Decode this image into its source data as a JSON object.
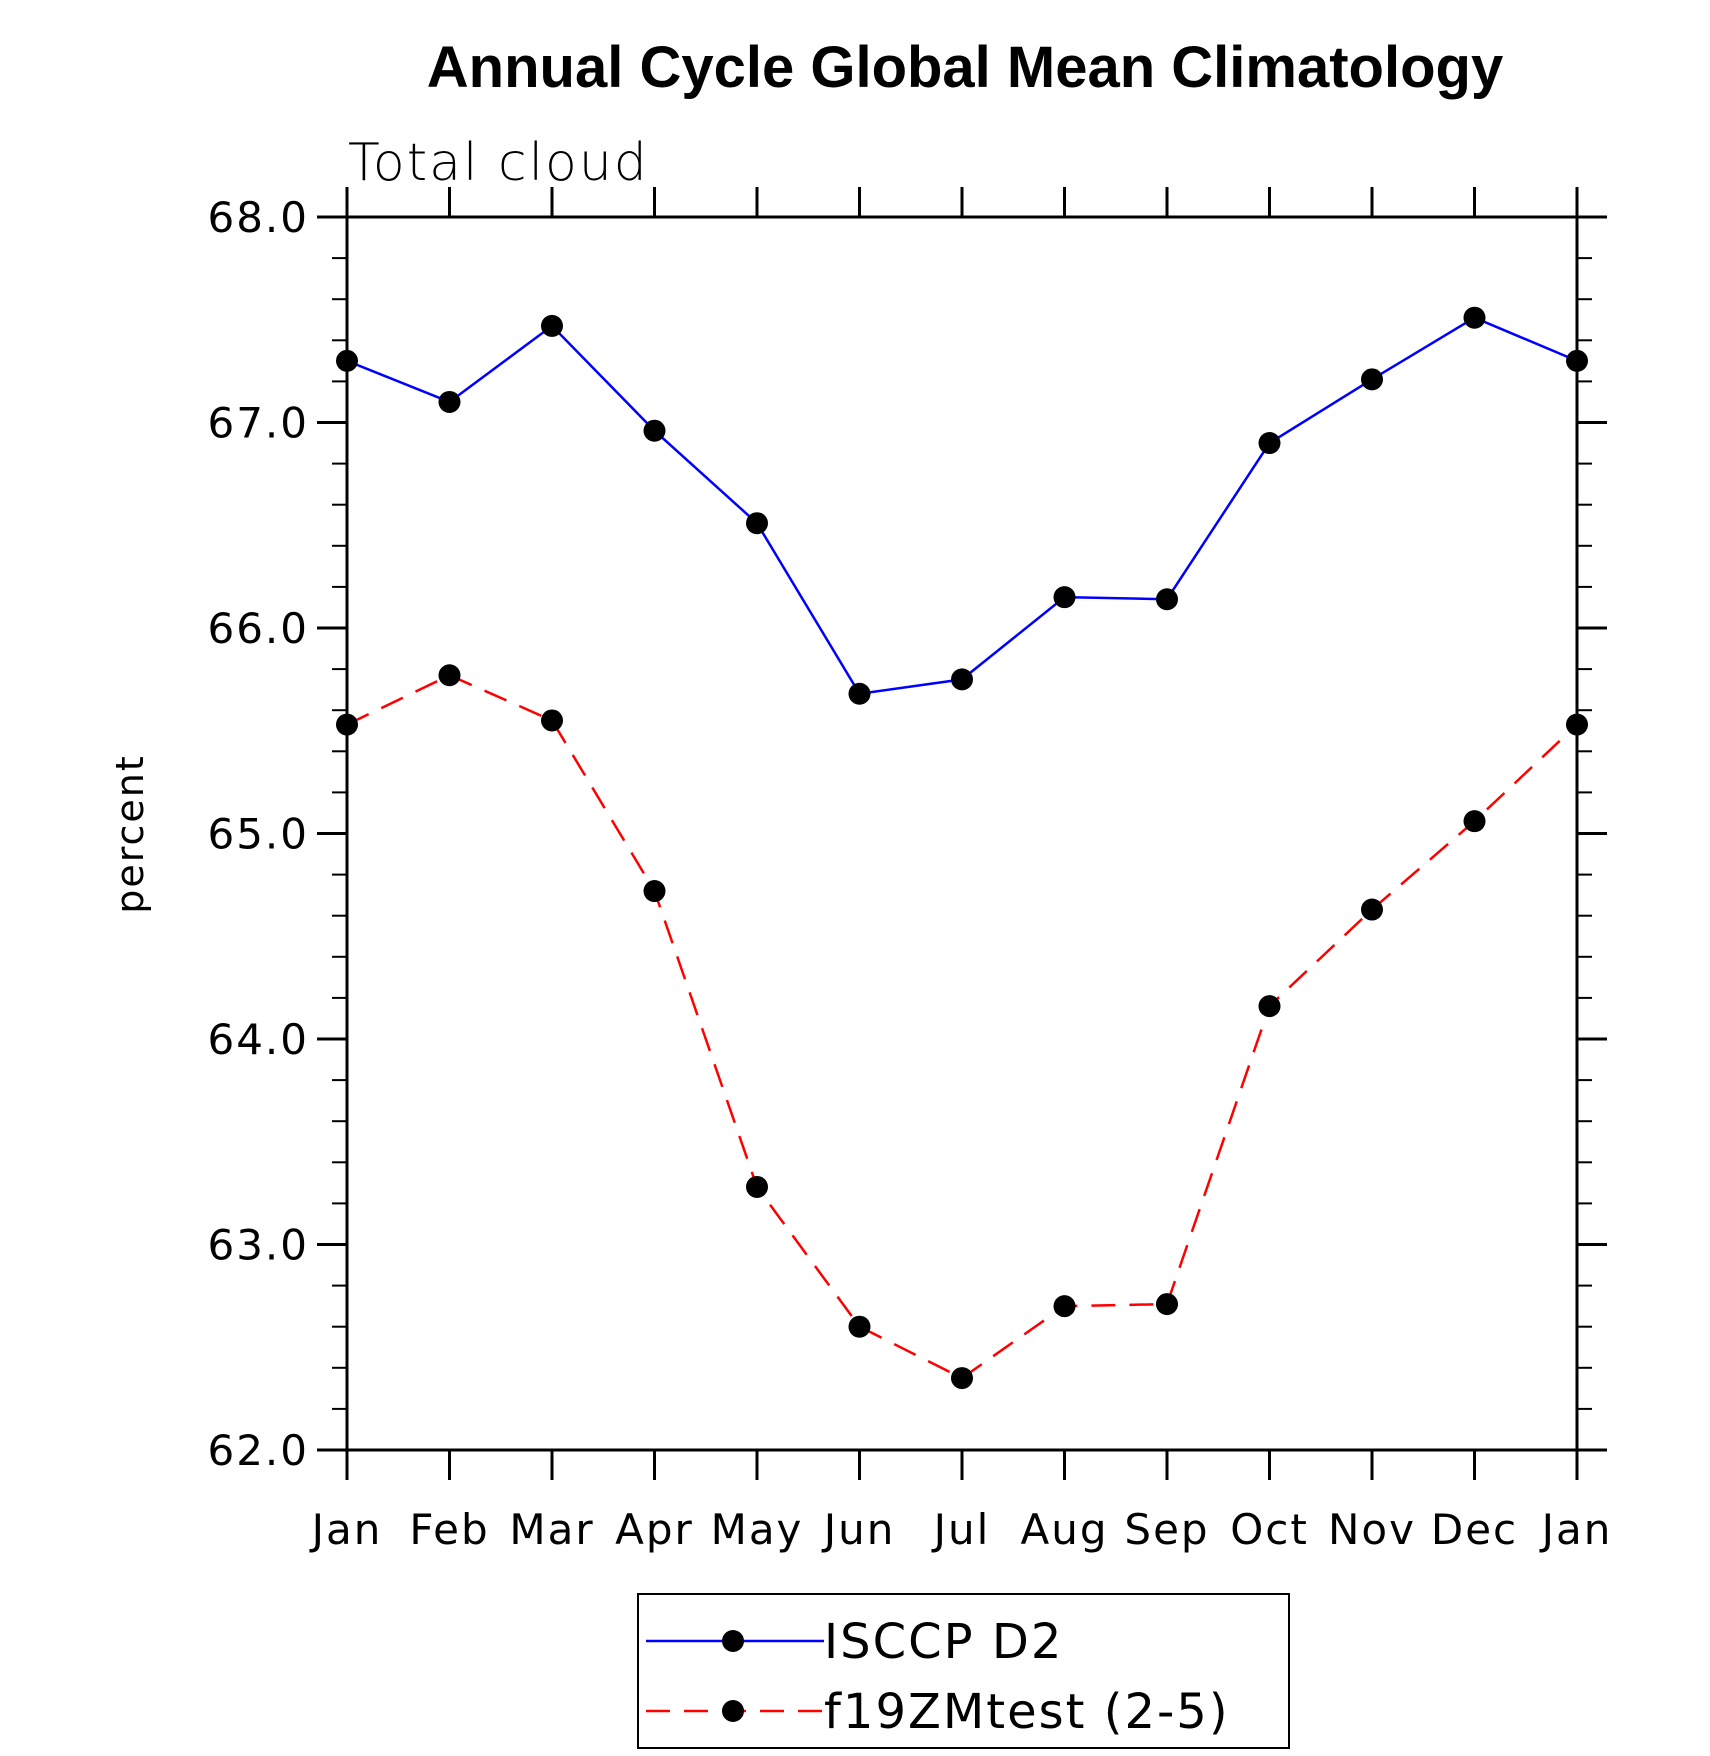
{
  "chart_data": {
    "type": "line",
    "title": "Annual Cycle Global Mean Climatology",
    "subtitle": "Total cloud",
    "xlabel": "",
    "ylabel": "percent",
    "categories": [
      "Jan",
      "Feb",
      "Mar",
      "Apr",
      "May",
      "Jun",
      "Jul",
      "Aug",
      "Sep",
      "Oct",
      "Nov",
      "Dec",
      "Jan"
    ],
    "ylim": [
      62.0,
      68.0
    ],
    "yticks": [
      "62.0",
      "63.0",
      "64.0",
      "65.0",
      "66.0",
      "67.0",
      "68.0"
    ],
    "grid": false,
    "legend_position": "bottom-center",
    "series": [
      {
        "name": "ISCCP D2",
        "color": "#0000ff",
        "line_style": "solid",
        "marker": "filled-circle",
        "values": [
          67.3,
          67.1,
          67.47,
          66.96,
          66.51,
          65.68,
          65.75,
          66.15,
          66.14,
          66.9,
          67.21,
          67.51,
          67.3
        ]
      },
      {
        "name": "f19ZMtest (2-5)",
        "color": "#ff0000",
        "line_style": "dashed",
        "marker": "filled-circle",
        "values": [
          65.53,
          65.77,
          65.55,
          64.72,
          63.28,
          62.6,
          62.35,
          62.7,
          62.71,
          64.16,
          64.63,
          65.06,
          65.53
        ]
      }
    ]
  }
}
